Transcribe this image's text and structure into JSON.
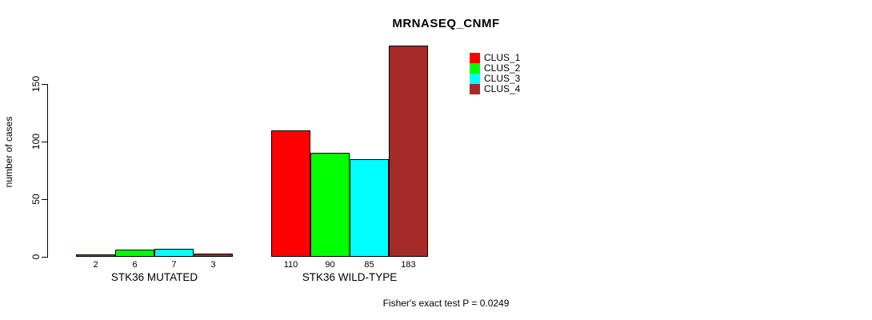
{
  "chart_data": {
    "type": "bar",
    "title": "MRNASEQ_CNMF",
    "ylabel": "number of cases",
    "xlabel": "",
    "ylim": [
      0,
      150
    ],
    "yticks": [
      0,
      50,
      100,
      150
    ],
    "grid": false,
    "legend_position": "top-right-inside",
    "categories": [
      "STK36 MUTATED",
      "STK36 WILD-TYPE"
    ],
    "series": [
      {
        "name": "CLUS_1",
        "color": "#ff0000",
        "values": [
          2,
          110
        ]
      },
      {
        "name": "CLUS_2",
        "color": "#00ff00",
        "values": [
          6,
          90
        ]
      },
      {
        "name": "CLUS_3",
        "color": "#00ffff",
        "values": [
          7,
          85
        ]
      },
      {
        "name": "CLUS_4",
        "color": "#a52a2a",
        "values": [
          3,
          183
        ]
      }
    ],
    "bar_value_labels": [
      [
        "2",
        "6",
        "7",
        "3"
      ],
      [
        "110",
        "90",
        "85",
        "183"
      ]
    ],
    "annotation": "Fisher's exact test P = 0.0249"
  }
}
